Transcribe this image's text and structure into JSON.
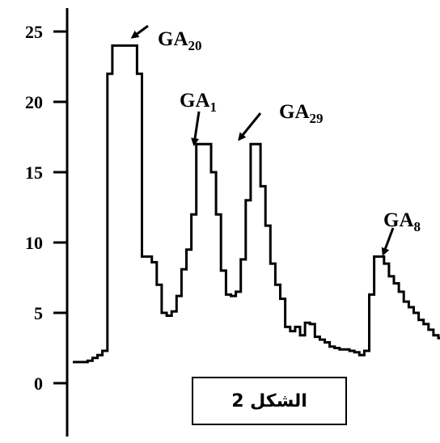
{
  "caption": "الشكل 2",
  "chart_data": {
    "type": "line",
    "title": "",
    "xlabel": "",
    "ylabel": "",
    "ylim": [
      0,
      25
    ],
    "yticks": [
      "0",
      "5",
      "10",
      "15",
      "20",
      "25"
    ],
    "grid": false,
    "color": "#000000",
    "series": [
      {
        "values": [
          1.5,
          1.5,
          1.5,
          1.6,
          1.8,
          2.0,
          2.3,
          22,
          24,
          24,
          24,
          24,
          24,
          22,
          9,
          9,
          8.6,
          7,
          5,
          4.8,
          5.1,
          6.2,
          8.1,
          9.5,
          12,
          17,
          17,
          17,
          15,
          12,
          8,
          6.3,
          6.2,
          6.5,
          8.8,
          13,
          17,
          17,
          14,
          11.2,
          8.5,
          7,
          6,
          4,
          3.7,
          4,
          3.4,
          4.3,
          4.2,
          3.3,
          3.1,
          2.9,
          2.6,
          2.5,
          2.4,
          2.4,
          2.3,
          2.2,
          2.0,
          2.3,
          6.3,
          9.0,
          9.0,
          8.5,
          7.6,
          7.1,
          6.5,
          5.8,
          5.4,
          5.0,
          4.5,
          4.2,
          3.8,
          3.4,
          3.2
        ]
      }
    ],
    "annotations": [
      {
        "base": "GA",
        "sub": "20",
        "value": 24
      },
      {
        "base": "GA",
        "sub": "1",
        "value": 17
      },
      {
        "base": "GA",
        "sub": "29",
        "value": 17
      },
      {
        "base": "GA",
        "sub": "8",
        "value": 9
      }
    ]
  }
}
